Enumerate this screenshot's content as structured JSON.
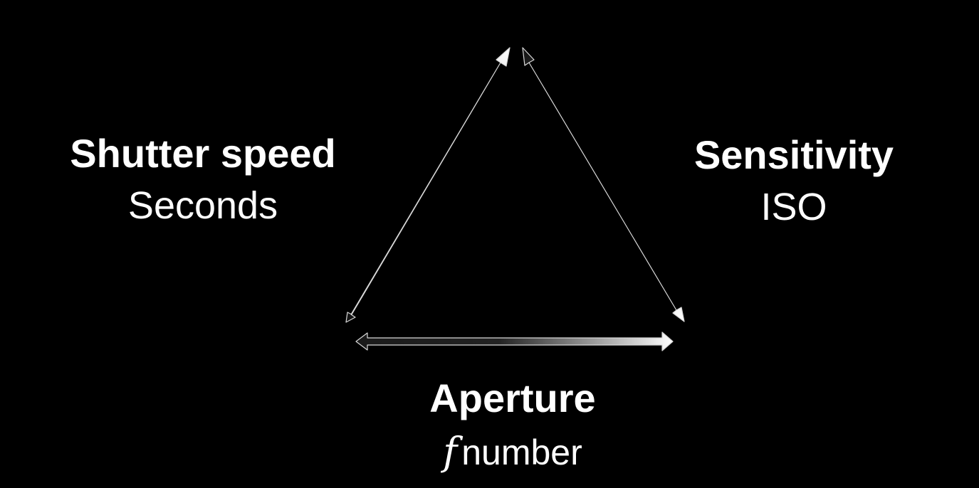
{
  "diagram": {
    "nodes": {
      "shutter": {
        "title": "Shutter speed",
        "subtitle": "Seconds"
      },
      "sensitivity": {
        "title": "Sensitivity",
        "subtitle": "ISO"
      },
      "aperture": {
        "title": "Aperture",
        "subtitle_symbol": "f",
        "subtitle": "number"
      }
    },
    "edges": [
      {
        "from": "shutter",
        "to": "top",
        "arrow": "double"
      },
      {
        "from": "top",
        "to": "sensitivity",
        "arrow": "double"
      },
      {
        "from": "shutter",
        "to": "sensitivity",
        "arrow": "double"
      }
    ],
    "colors": {
      "background": "#000000",
      "text": "#ffffff",
      "arrow_light": "#ffffff",
      "arrow_dark": "#1a1a1a"
    }
  }
}
